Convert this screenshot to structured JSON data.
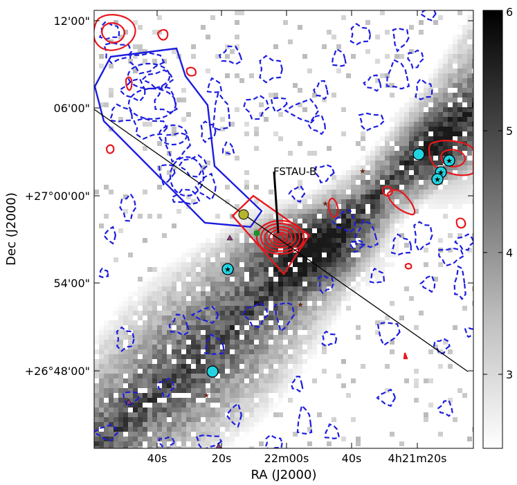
{
  "chart_data": {
    "type": "heatmap",
    "title": "",
    "xlabel": "RA (J2000)",
    "ylabel": "Dec (J2000)",
    "x_ticks": [
      "40s",
      "20s",
      "22m00s",
      "40s",
      "4h21m20s"
    ],
    "y_ticks": [
      "12'00\"",
      "06'00\"",
      "+27°00'00\"",
      "54'00\"",
      "+26°48'00\""
    ],
    "colorbar": {
      "ticks": [
        "6",
        "5",
        "4",
        "3"
      ],
      "range": [
        2.4,
        6.0
      ],
      "cmap": "gray_r"
    },
    "annotations": [
      {
        "text": "FSTAU-B",
        "target": "central red contour peak"
      }
    ],
    "overlays": {
      "red_contours": "positive emission",
      "blue_dashed_contours": "negative emission",
      "blue_polygon": "outflow lobe",
      "red_polygon": "outflow lobe",
      "diagonal_line": "outflow axis",
      "cyan_circles": 7,
      "stars_brown": 4,
      "triangles_purple": 3,
      "green_hexagon": 1,
      "olive_circle": 1
    },
    "colors": {
      "red": "#e8171c",
      "blue": "#1c1ce0",
      "cyan": "#22d3e0",
      "olive": "#b6b42a",
      "green": "#1f8f2a",
      "purple": "#8a3c7a",
      "brown": "#6b2a1c"
    }
  }
}
